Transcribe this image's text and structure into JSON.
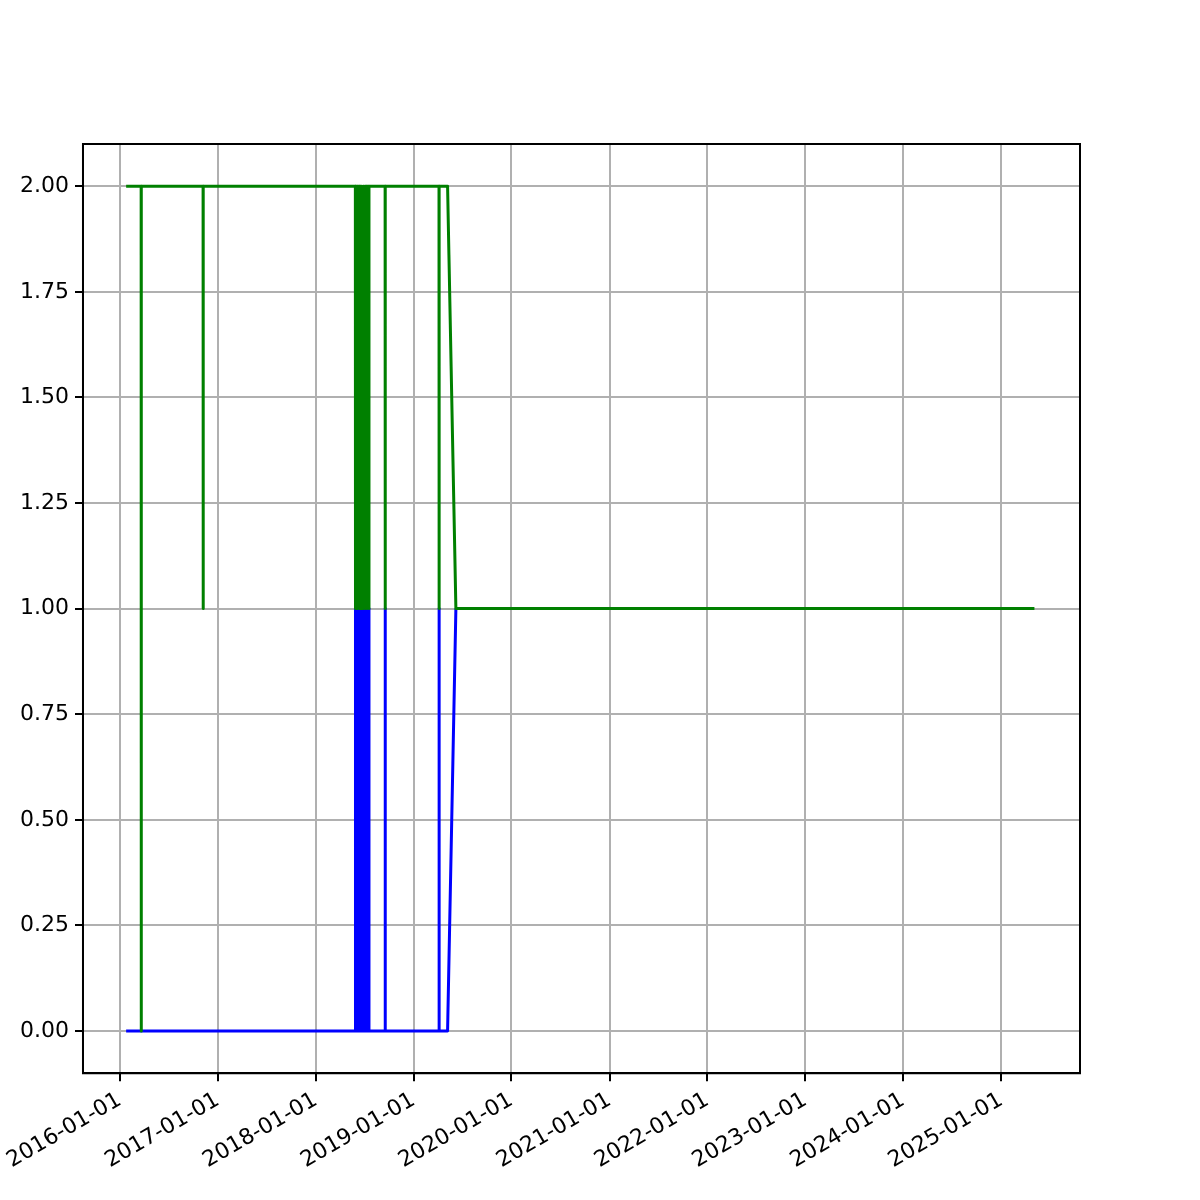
{
  "chart_data": {
    "type": "line",
    "xlim": [
      "2015-08-17",
      "2025-10-22"
    ],
    "xticks": [
      "2016-01-01",
      "2017-01-01",
      "2018-01-01",
      "2019-01-01",
      "2020-01-01",
      "2021-01-01",
      "2022-01-01",
      "2023-01-01",
      "2024-01-01",
      "2025-01-01"
    ],
    "ylim": [
      -0.1,
      2.1
    ],
    "yticks": [
      {
        "value": 0,
        "label": "0.00"
      },
      {
        "value": 0.25,
        "label": "0.25"
      },
      {
        "value": 0.5,
        "label": "0.50"
      },
      {
        "value": 0.75,
        "label": "0.75"
      },
      {
        "value": 1,
        "label": "1.00"
      },
      {
        "value": 1.25,
        "label": "1.25"
      },
      {
        "value": 1.5,
        "label": "1.50"
      },
      {
        "value": 1.75,
        "label": "1.75"
      },
      {
        "value": 2,
        "label": "2.00"
      }
    ],
    "grid": true,
    "legend": false,
    "marker": "none",
    "line_style": "solid",
    "series": [
      {
        "color": "#008000",
        "x": [
          "2016-01-25",
          "2016-03-21",
          "2016-03-21",
          "2016-03-22",
          "2016-11-07",
          "2016-11-07",
          "2016-11-08",
          "2018-05-29",
          "2018-05-29",
          "2018-05-30",
          "2018-06-02",
          "2018-06-02",
          "2018-06-03",
          "2018-06-06",
          "2018-06-06",
          "2018-06-07",
          "2018-06-10",
          "2018-06-10",
          "2018-06-11",
          "2018-06-14",
          "2018-06-14",
          "2018-06-15",
          "2018-06-18",
          "2018-06-18",
          "2018-06-19",
          "2018-06-22",
          "2018-06-22",
          "2018-06-23",
          "2018-06-26",
          "2018-06-26",
          "2018-06-27",
          "2018-06-30",
          "2018-06-30",
          "2018-07-01",
          "2018-07-04",
          "2018-07-04",
          "2018-07-05",
          "2018-07-08",
          "2018-07-08",
          "2018-07-09",
          "2018-07-12",
          "2018-07-12",
          "2018-07-13",
          "2018-07-16",
          "2018-07-16",
          "2018-07-17",
          "2018-07-20",
          "2018-07-20",
          "2018-07-21",
          "2018-09-17",
          "2018-09-17",
          "2018-09-18",
          "2019-04-06",
          "2019-04-06",
          "2019-04-07",
          "2019-05-08",
          "2019-06-08",
          "2025-05-05"
        ],
        "values": [
          2,
          2,
          0,
          2,
          2,
          1,
          2,
          2,
          1,
          2,
          2,
          1,
          2,
          2,
          1,
          2,
          2,
          1,
          2,
          2,
          1,
          2,
          2,
          1,
          2,
          2,
          1,
          2,
          2,
          1,
          2,
          2,
          1,
          2,
          2,
          1,
          2,
          2,
          1,
          2,
          2,
          1,
          2,
          2,
          1,
          2,
          2,
          1,
          2,
          2,
          1,
          2,
          2,
          1,
          2,
          2,
          1,
          1
        ]
      },
      {
        "color": "#0000ff",
        "x": [
          "2016-01-25",
          "2018-05-29",
          "2018-05-29",
          "2018-05-30",
          "2018-06-02",
          "2018-06-02",
          "2018-06-03",
          "2018-06-06",
          "2018-06-06",
          "2018-06-07",
          "2018-06-10",
          "2018-06-10",
          "2018-06-11",
          "2018-06-14",
          "2018-06-14",
          "2018-06-15",
          "2018-06-18",
          "2018-06-18",
          "2018-06-19",
          "2018-06-22",
          "2018-06-22",
          "2018-06-23",
          "2018-06-26",
          "2018-06-26",
          "2018-06-27",
          "2018-06-30",
          "2018-06-30",
          "2018-07-01",
          "2018-07-04",
          "2018-07-04",
          "2018-07-05",
          "2018-07-08",
          "2018-07-08",
          "2018-07-09",
          "2018-07-12",
          "2018-07-12",
          "2018-07-13",
          "2018-07-16",
          "2018-07-16",
          "2018-07-17",
          "2018-07-20",
          "2018-07-20",
          "2018-07-21",
          "2018-09-17",
          "2018-09-17",
          "2018-09-18",
          "2019-04-06",
          "2019-04-06",
          "2019-04-07",
          "2019-05-08",
          "2019-06-08"
        ],
        "values": [
          0,
          0,
          1,
          0,
          0,
          1,
          0,
          0,
          1,
          0,
          0,
          1,
          0,
          0,
          1,
          0,
          0,
          1,
          0,
          0,
          1,
          0,
          0,
          1,
          0,
          0,
          1,
          0,
          0,
          1,
          0,
          0,
          1,
          0,
          0,
          1,
          0,
          0,
          1,
          0,
          0,
          1,
          0,
          0,
          1,
          0,
          0,
          1,
          0,
          0,
          1
        ]
      }
    ]
  }
}
